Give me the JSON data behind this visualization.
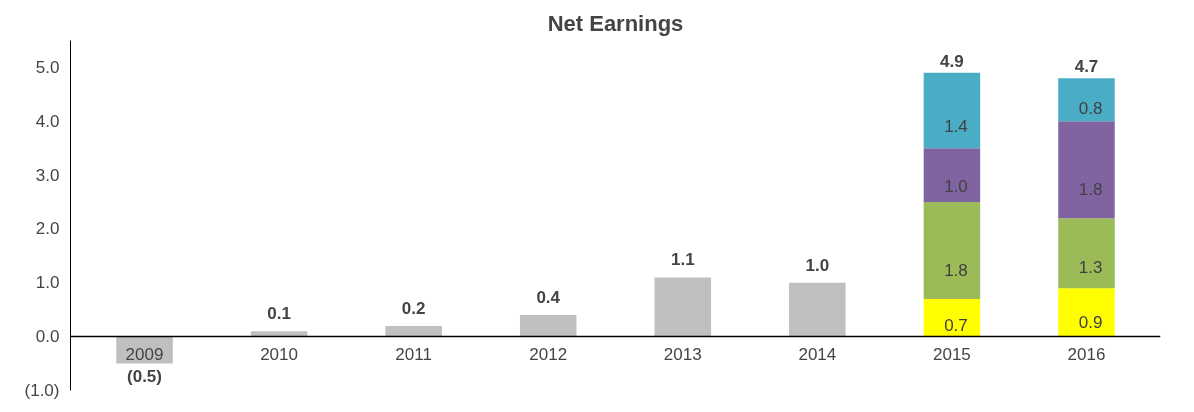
{
  "chart_data": {
    "type": "bar",
    "title": "Net Earnings",
    "stacked": true,
    "categories": [
      "2009",
      "2010",
      "2011",
      "2012",
      "2013",
      "2014",
      "2015",
      "2016"
    ],
    "series": [
      {
        "color": "#bfbfbf",
        "values": [
          -0.5,
          0.1,
          0.2,
          0.4,
          1.1,
          1.0,
          null,
          null
        ],
        "value_labels": [
          "(0.5)",
          "0.1",
          "0.2",
          "0.4",
          "1.1",
          "1.0",
          null,
          null
        ]
      },
      {
        "color": "#ffff00",
        "values": [
          null,
          null,
          null,
          null,
          null,
          null,
          0.7,
          0.9
        ],
        "value_labels": [
          null,
          null,
          null,
          null,
          null,
          null,
          "0.7",
          "0.9"
        ]
      },
      {
        "color": "#9bbb59",
        "values": [
          null,
          null,
          null,
          null,
          null,
          null,
          1.8,
          1.3
        ],
        "value_labels": [
          null,
          null,
          null,
          null,
          null,
          null,
          "1.8",
          "1.3"
        ]
      },
      {
        "color": "#8064a2",
        "values": [
          null,
          null,
          null,
          null,
          null,
          null,
          1.0,
          1.8
        ],
        "value_labels": [
          null,
          null,
          null,
          null,
          null,
          null,
          "1.0",
          "1.8"
        ]
      },
      {
        "color": "#4bacc6",
        "values": [
          null,
          null,
          null,
          null,
          null,
          null,
          1.4,
          0.8
        ],
        "value_labels": [
          null,
          null,
          null,
          null,
          null,
          null,
          "1.4",
          "0.8"
        ]
      }
    ],
    "totals": [
      null,
      null,
      null,
      null,
      null,
      null,
      "4.9",
      "4.7"
    ],
    "ylim": [
      -1,
      5.5
    ],
    "yticks": [
      {
        "value": -1,
        "label": "(1.0)"
      },
      {
        "value": 0,
        "label": "0.0"
      },
      {
        "value": 1,
        "label": "1.0"
      },
      {
        "value": 2,
        "label": "2.0"
      },
      {
        "value": 3,
        "label": "3.0"
      },
      {
        "value": 4,
        "label": "4.0"
      },
      {
        "value": 5,
        "label": "5.0"
      }
    ],
    "grid": false
  }
}
